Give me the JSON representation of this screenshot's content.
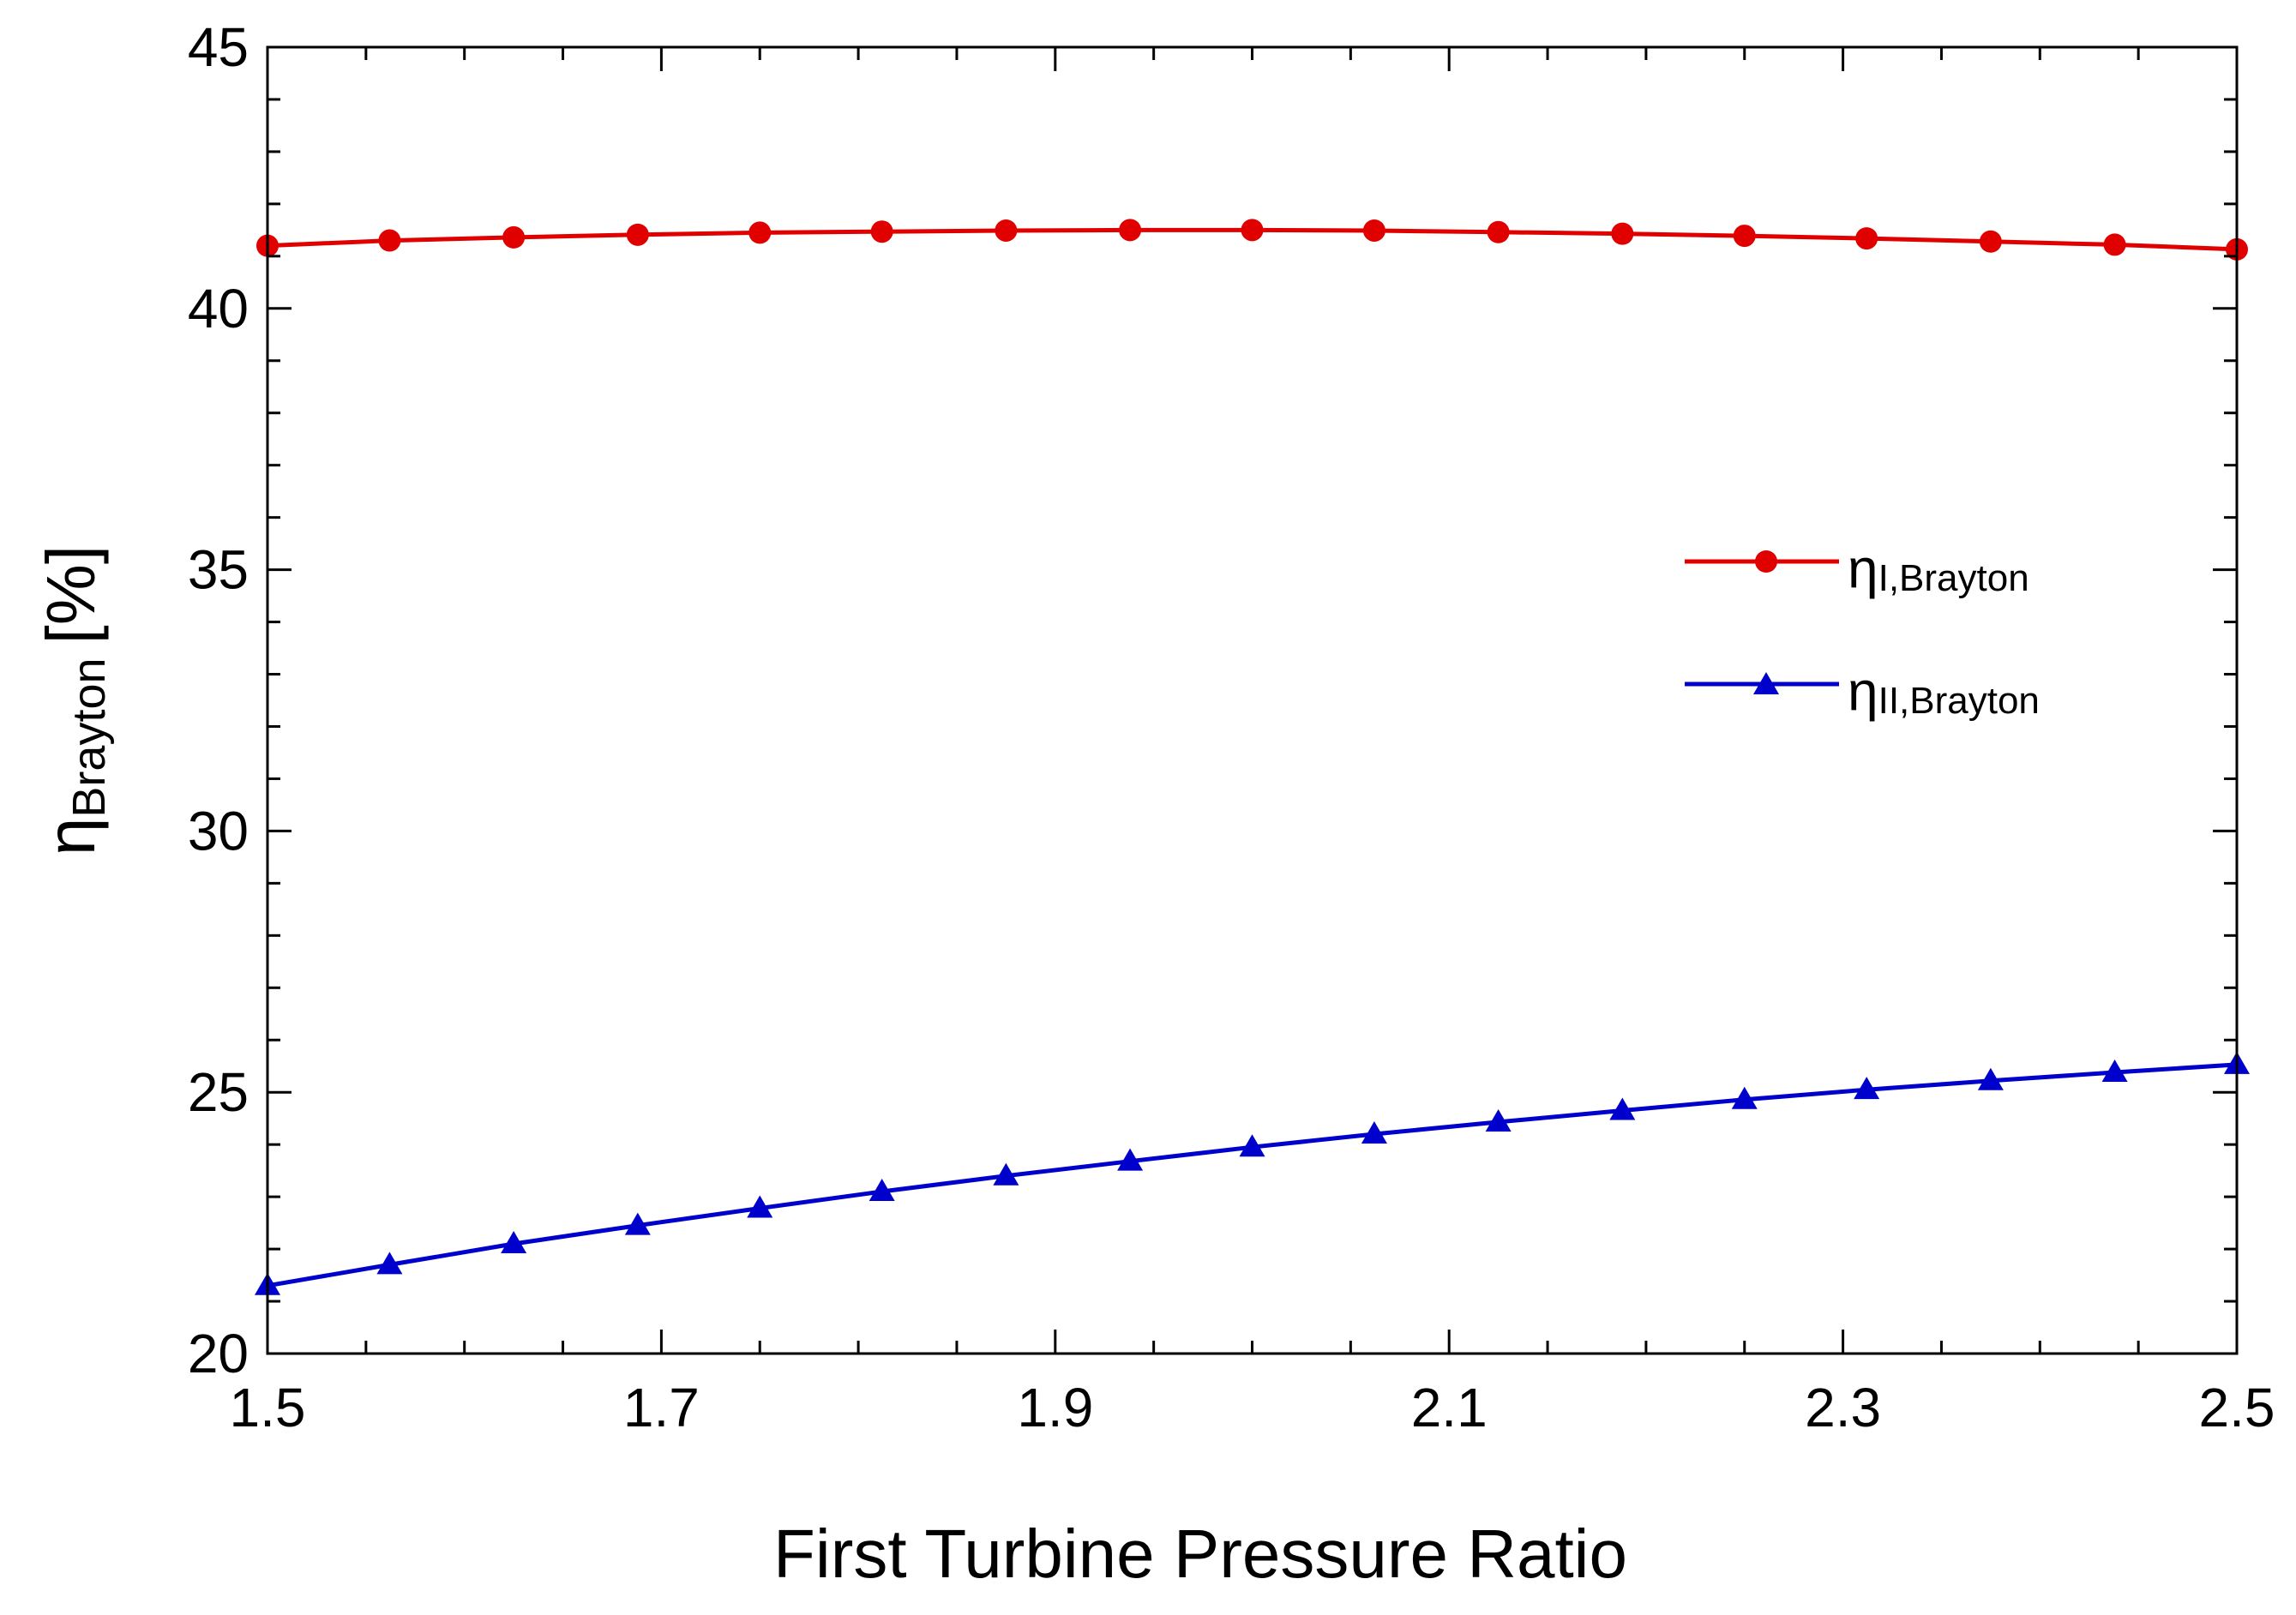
{
  "chart_data": {
    "type": "line",
    "title": "",
    "xlabel": "First Turbine Pressure Ratio",
    "ylabel": {
      "symbol": "η",
      "subscript": "Brayton",
      "unit": "[%]"
    },
    "xlim": [
      1.5,
      2.5
    ],
    "ylim": [
      20,
      45
    ],
    "x_ticks": [
      1.5,
      1.7,
      1.9,
      2.1,
      2.3,
      2.5
    ],
    "x_tick_labels": [
      "1.5",
      "1.7",
      "1.9",
      "2.1",
      "2.3",
      "2.5"
    ],
    "y_ticks": [
      20,
      25,
      30,
      35,
      40,
      45
    ],
    "y_tick_labels": [
      "20",
      "25",
      "30",
      "35",
      "40",
      "45"
    ],
    "grid": false,
    "legend_position": "right-middle",
    "series": [
      {
        "name": "ηI,Brayton",
        "symbol": "η",
        "subscript": "I,Brayton",
        "color": "#e00000",
        "marker": "circle",
        "x": [
          1.5,
          1.562,
          1.625,
          1.688,
          1.75,
          1.812,
          1.875,
          1.938,
          2.0,
          2.062,
          2.125,
          2.188,
          2.25,
          2.312,
          2.375,
          2.438,
          2.5
        ],
        "values": [
          41.2,
          41.3,
          41.36,
          41.41,
          41.45,
          41.47,
          41.49,
          41.5,
          41.5,
          41.49,
          41.46,
          41.43,
          41.39,
          41.34,
          41.28,
          41.22,
          41.13
        ]
      },
      {
        "name": "ηII,Brayton",
        "symbol": "η",
        "subscript": "II,Brayton",
        "color": "#0000cc",
        "marker": "triangle",
        "x": [
          1.5,
          1.562,
          1.625,
          1.688,
          1.75,
          1.812,
          1.875,
          1.938,
          2.0,
          2.062,
          2.125,
          2.188,
          2.25,
          2.312,
          2.375,
          2.438,
          2.5
        ],
        "values": [
          21.3,
          21.7,
          22.1,
          22.45,
          22.78,
          23.1,
          23.4,
          23.68,
          23.95,
          24.2,
          24.43,
          24.65,
          24.86,
          25.05,
          25.22,
          25.38,
          25.53
        ]
      }
    ]
  }
}
